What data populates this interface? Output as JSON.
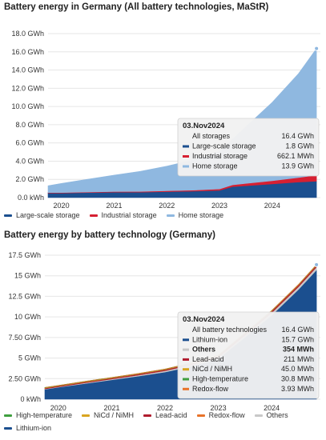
{
  "chart_data": [
    {
      "type": "area",
      "title": "Battery energy in Germany (All battery technologies, MaStR)",
      "x_ticks": [
        "2020",
        "2021",
        "2022",
        "2023",
        "2024"
      ],
      "x_range": [
        "2019-10-01",
        "2024-11-30"
      ],
      "y_ticks": [
        "0.0 kWh",
        "2.0 GWh",
        "4.0 GWh",
        "6.0 GWh",
        "8.0 GWh",
        "10.0 GWh",
        "12.0 GWh",
        "14.0 GWh",
        "16.0 GWh",
        "18.0 GWh"
      ],
      "ylim": [
        0,
        18
      ],
      "y_unit": "GWh",
      "stacked": true,
      "x": [
        "2019-10-01",
        "2020-01-01",
        "2020-07-01",
        "2021-01-01",
        "2021-07-01",
        "2022-01-01",
        "2022-07-01",
        "2023-01-01",
        "2023-04-01",
        "2023-07-01",
        "2024-01-01",
        "2024-07-01",
        "2024-11-03"
      ],
      "series": [
        {
          "name": "Large-scale storage",
          "color": "#1b4f8f",
          "values": [
            0.5,
            0.5,
            0.55,
            0.6,
            0.6,
            0.65,
            0.7,
            0.8,
            1.2,
            1.3,
            1.5,
            1.7,
            1.8
          ]
        },
        {
          "name": "Industrial storage",
          "color": "#d62032",
          "values": [
            0.05,
            0.05,
            0.06,
            0.07,
            0.08,
            0.1,
            0.12,
            0.15,
            0.2,
            0.25,
            0.35,
            0.5,
            0.66
          ]
        },
        {
          "name": "Home storage",
          "color": "#8fb8e0",
          "values": [
            0.75,
            1.0,
            1.4,
            1.8,
            2.2,
            2.7,
            3.3,
            4.1,
            5.0,
            6.2,
            8.6,
            11.4,
            13.9
          ]
        }
      ],
      "legend": [
        "Large-scale storage",
        "Industrial storage",
        "Home storage"
      ],
      "tooltip": {
        "date": "03.Nov2024",
        "rows": [
          {
            "label": "All storages",
            "value": "16.4 GWh",
            "color": ""
          },
          {
            "label": "Large-scale storage",
            "value": "1.8 GWh",
            "color": "#1b4f8f"
          },
          {
            "label": "Industrial storage",
            "value": "662.1 MWh",
            "color": "#d62032"
          },
          {
            "label": "Home storage",
            "value": "13.9 GWh",
            "color": "#8fb8e0"
          }
        ]
      }
    },
    {
      "type": "area",
      "title": "Battery energy by battery technology (Germany)",
      "x_ticks": [
        "2020",
        "2021",
        "2022",
        "2023",
        "2024"
      ],
      "x_range": [
        "2019-10-01",
        "2024-11-30"
      ],
      "y_ticks": [
        "0 kWh",
        "2.50 GWh",
        "5 GWh",
        "7.50 GWh",
        "10 GWh",
        "12.5 GWh",
        "15 GWh",
        "17.5 GWh"
      ],
      "ylim": [
        0,
        17.5
      ],
      "y_unit": "GWh",
      "stacked": true,
      "x": [
        "2019-10-01",
        "2020-01-01",
        "2020-07-01",
        "2021-01-01",
        "2021-07-01",
        "2022-01-01",
        "2022-07-01",
        "2023-01-01",
        "2023-04-01",
        "2023-07-01",
        "2024-01-01",
        "2024-07-01",
        "2024-11-03"
      ],
      "series": [
        {
          "name": "Lithium-ion",
          "color": "#1b4f8f",
          "values": [
            1.2,
            1.45,
            1.9,
            2.35,
            2.8,
            3.3,
            4.0,
            4.9,
            6.2,
            7.5,
            10.2,
            13.3,
            15.7
          ]
        },
        {
          "name": "Others",
          "color": "#c8c8c8",
          "values": [
            0.05,
            0.05,
            0.08,
            0.1,
            0.12,
            0.15,
            0.18,
            0.2,
            0.24,
            0.27,
            0.3,
            0.33,
            0.354
          ]
        },
        {
          "name": "Lead-acid",
          "color": "#b01c2e",
          "values": [
            0.1,
            0.1,
            0.11,
            0.12,
            0.13,
            0.14,
            0.15,
            0.16,
            0.17,
            0.18,
            0.19,
            0.2,
            0.211
          ]
        },
        {
          "name": "NiCd / NiMH",
          "color": "#d9a520",
          "values": [
            0.045,
            0.045,
            0.045,
            0.045,
            0.045,
            0.045,
            0.045,
            0.045,
            0.045,
            0.045,
            0.045,
            0.045,
            0.045
          ]
        },
        {
          "name": "High-temperature",
          "color": "#3f9f3f",
          "values": [
            0.03,
            0.03,
            0.03,
            0.03,
            0.03,
            0.03,
            0.03,
            0.03,
            0.03,
            0.031,
            0.031,
            0.031,
            0.0308
          ]
        },
        {
          "name": "Redox-flow",
          "color": "#e8732a",
          "values": [
            0.002,
            0.002,
            0.002,
            0.002,
            0.003,
            0.003,
            0.003,
            0.003,
            0.003,
            0.004,
            0.004,
            0.004,
            0.00393
          ]
        }
      ],
      "legend": [
        "High-temperature",
        "NiCd / NiMH",
        "Lead-acid",
        "Redox-flow",
        "Others",
        "Lithium-ion"
      ],
      "tooltip": {
        "date": "03.Nov2024",
        "rows": [
          {
            "label": "All battery technologies",
            "value": "16.4 GWh",
            "color": ""
          },
          {
            "label": "Lithium-ion",
            "value": "15.7 GWh",
            "color": "#1b4f8f"
          },
          {
            "label": "Others",
            "value": "354 MWh",
            "color": "#c8c8c8",
            "bold": true
          },
          {
            "label": "Lead-acid",
            "value": "211 MWh",
            "color": "#b01c2e"
          },
          {
            "label": "NiCd / NiMH",
            "value": "45.0 MWh",
            "color": "#d9a520"
          },
          {
            "label": "High-temperature",
            "value": "30.8 MWh",
            "color": "#3f9f3f"
          },
          {
            "label": "Redox-flow",
            "value": "3.93 MWh",
            "color": "#e8732a"
          }
        ]
      }
    }
  ]
}
